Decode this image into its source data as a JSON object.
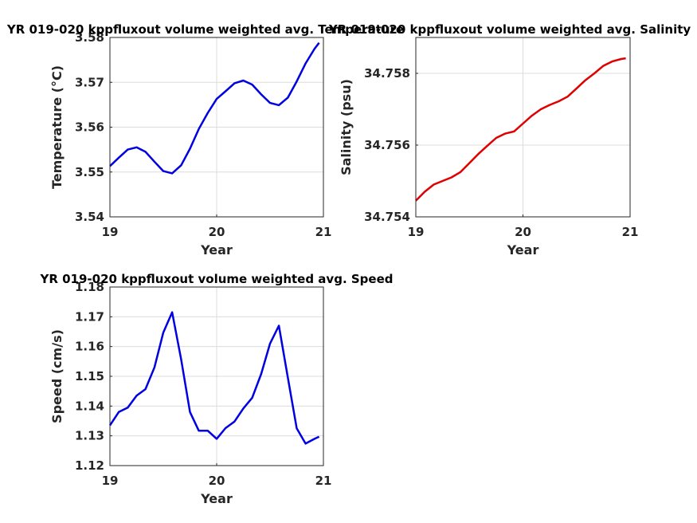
{
  "chart_data": [
    {
      "type": "line",
      "title": "YR 019-020 kppfluxout volume weighted avg. Temperature",
      "xlabel": "Year",
      "ylabel": "Temperature (°C)",
      "xlim": [
        19,
        21
      ],
      "ylim": [
        3.54,
        3.58
      ],
      "xticks": [
        19,
        20,
        21
      ],
      "xtick_labels": [
        "19",
        "20",
        "21"
      ],
      "yticks": [
        3.54,
        3.55,
        3.56,
        3.57,
        3.58
      ],
      "ytick_labels": [
        "3.54",
        "3.55",
        "3.56",
        "3.57",
        "3.58"
      ],
      "grid": true,
      "color": "#0000e0",
      "series": [
        {
          "x": [
            19.0,
            19.083,
            19.167,
            19.25,
            19.333,
            19.417,
            19.5,
            19.583,
            19.667,
            19.75,
            19.833,
            19.917,
            20.0,
            20.083,
            20.167,
            20.25,
            20.333,
            20.417,
            20.5,
            20.583,
            20.667,
            20.75,
            20.833,
            20.917,
            20.96
          ],
          "y": [
            3.5513,
            3.5532,
            3.555,
            3.5555,
            3.5545,
            3.5523,
            3.5502,
            3.5497,
            3.5515,
            3.5552,
            3.5596,
            3.5632,
            3.5663,
            3.568,
            3.5698,
            3.5704,
            3.5695,
            3.5673,
            3.5654,
            3.5649,
            3.5666,
            3.5702,
            3.5742,
            3.5775,
            3.5788
          ]
        }
      ]
    },
    {
      "type": "line",
      "title": "YR 019-020 kppfluxout volume weighted avg. Salinity",
      "xlabel": "Year",
      "ylabel": "Salinity (psu)",
      "xlim": [
        19,
        21
      ],
      "ylim": [
        34.754,
        34.759
      ],
      "xticks": [
        19,
        20,
        21
      ],
      "xtick_labels": [
        "19",
        "20",
        "21"
      ],
      "yticks": [
        34.754,
        34.756,
        34.758
      ],
      "ytick_labels": [
        "34.754",
        "34.756",
        "34.758"
      ],
      "grid": true,
      "color": "#e00000",
      "series": [
        {
          "x": [
            19.0,
            19.083,
            19.167,
            19.25,
            19.333,
            19.417,
            19.5,
            19.583,
            19.667,
            19.75,
            19.833,
            19.917,
            20.0,
            20.083,
            20.167,
            20.25,
            20.333,
            20.417,
            20.5,
            20.583,
            20.667,
            20.75,
            20.833,
            20.917,
            20.96
          ],
          "y": [
            34.75445,
            34.7547,
            34.7549,
            34.755,
            34.7551,
            34.75525,
            34.7555,
            34.75575,
            34.75598,
            34.7562,
            34.75632,
            34.75638,
            34.7566,
            34.75682,
            34.757,
            34.75712,
            34.75722,
            34.75735,
            34.75758,
            34.75781,
            34.758,
            34.75821,
            34.75833,
            34.7584,
            34.75842
          ]
        }
      ]
    },
    {
      "type": "line",
      "title": "YR 019-020 kppfluxout volume weighted avg. Speed",
      "xlabel": "Year",
      "ylabel": "Speed (cm/s)",
      "xlim": [
        19,
        21
      ],
      "ylim": [
        1.12,
        1.18
      ],
      "xticks": [
        19,
        20,
        21
      ],
      "xtick_labels": [
        "19",
        "20",
        "21"
      ],
      "yticks": [
        1.12,
        1.13,
        1.14,
        1.15,
        1.16,
        1.17,
        1.18
      ],
      "ytick_labels": [
        "1.12",
        "1.13",
        "1.14",
        "1.15",
        "1.16",
        "1.17",
        "1.18"
      ],
      "grid": true,
      "color": "#0000e0",
      "series": [
        {
          "x": [
            19.0,
            19.083,
            19.167,
            19.25,
            19.333,
            19.417,
            19.5,
            19.583,
            19.667,
            19.75,
            19.833,
            19.917,
            20.0,
            20.083,
            20.167,
            20.25,
            20.333,
            20.417,
            20.5,
            20.583,
            20.667,
            20.75,
            20.833,
            20.917,
            20.96
          ],
          "y": [
            1.1335,
            1.138,
            1.1395,
            1.1435,
            1.1457,
            1.153,
            1.1647,
            1.1715,
            1.1557,
            1.138,
            1.1317,
            1.1317,
            1.129,
            1.1326,
            1.1348,
            1.1392,
            1.1428,
            1.1508,
            1.161,
            1.167,
            1.1495,
            1.1325,
            1.1274,
            1.129,
            1.1297
          ]
        }
      ]
    }
  ]
}
